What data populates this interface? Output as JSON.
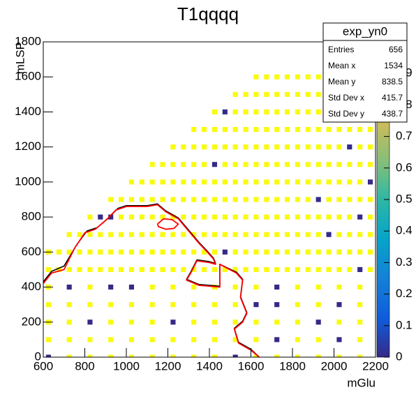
{
  "chart_data": {
    "type": "heatmap",
    "title": "T1qqqq",
    "x_label": "mGlu",
    "y_label": "mLSP",
    "xlim": [
      600,
      2200
    ],
    "ylim": [
      0,
      1800
    ],
    "xticks": [
      600,
      800,
      1000,
      1200,
      1400,
      1600,
      1800,
      2000,
      2200
    ],
    "yticks": [
      0,
      200,
      400,
      600,
      800,
      1000,
      1200,
      1400,
      1600,
      1800
    ],
    "zlim": [
      0,
      1
    ],
    "zticks": [
      0,
      0.1,
      0.2,
      0.3,
      0.4,
      0.5,
      0.6,
      0.7,
      0.8,
      0.9
    ],
    "palette": [
      "#352a87",
      "#0f5cdd",
      "#1481d6",
      "#06a4ca",
      "#2eb7a4",
      "#87bf77",
      "#d1bb59",
      "#fec832",
      "#f9fb0e"
    ],
    "x": [
      625,
      675,
      725,
      775,
      825,
      875,
      925,
      975,
      1025,
      1075,
      1125,
      1175,
      1225,
      1275,
      1325,
      1375,
      1425,
      1475,
      1525,
      1575,
      1625,
      1675,
      1725,
      1775,
      1825,
      1875,
      1925,
      1975,
      2025,
      2075,
      2125,
      2175
    ],
    "y": [
      0,
      100,
      200,
      300,
      400,
      500,
      600,
      700,
      800,
      900,
      1000,
      1100,
      1200,
      1300,
      1400,
      1500,
      1600
    ],
    "z": [
      [
        0,
        null,
        1,
        null,
        1,
        null,
        1,
        null,
        1,
        null,
        1,
        null,
        1,
        null,
        1,
        null,
        1,
        null,
        0,
        null,
        1,
        null,
        1,
        null,
        1,
        null,
        1,
        null,
        1,
        null,
        1,
        null
      ],
      [
        1,
        null,
        1,
        null,
        1,
        null,
        1,
        null,
        1,
        null,
        1,
        null,
        1,
        null,
        1,
        null,
        1,
        null,
        1,
        null,
        1,
        null,
        0,
        null,
        1,
        null,
        1,
        null,
        0,
        null,
        1,
        null
      ],
      [
        1,
        null,
        1,
        null,
        0,
        null,
        1,
        null,
        1,
        null,
        1,
        null,
        0,
        null,
        1,
        null,
        1,
        null,
        1,
        null,
        1,
        null,
        1,
        null,
        1,
        null,
        0,
        null,
        1,
        null,
        1,
        null
      ],
      [
        1,
        null,
        1,
        null,
        1,
        null,
        1,
        null,
        1,
        null,
        1,
        null,
        1,
        null,
        1,
        null,
        1,
        null,
        1,
        null,
        0,
        null,
        0,
        null,
        1,
        null,
        1,
        null,
        0,
        null,
        1,
        null
      ],
      [
        1,
        null,
        0,
        null,
        1,
        null,
        0,
        null,
        0,
        null,
        1,
        null,
        1,
        null,
        1,
        null,
        1,
        null,
        1,
        null,
        1,
        null,
        0,
        null,
        1,
        null,
        1,
        null,
        1,
        null,
        1,
        null
      ],
      [
        1,
        1,
        1,
        1,
        1,
        1,
        1,
        1,
        1,
        1,
        1,
        1,
        1,
        1,
        1,
        1,
        1,
        1,
        1,
        1,
        1,
        1,
        1,
        1,
        1,
        1,
        1,
        1,
        1,
        1,
        0,
        1
      ],
      [
        1,
        1,
        1,
        1,
        1,
        1,
        1,
        1,
        1,
        1,
        1,
        1,
        1,
        1,
        1,
        1,
        1,
        0,
        1,
        1,
        1,
        1,
        1,
        1,
        1,
        1,
        1,
        1,
        1,
        1,
        1,
        1
      ],
      [
        null,
        null,
        1,
        1,
        1,
        1,
        1,
        1,
        1,
        1,
        1,
        1,
        1,
        1,
        1,
        1,
        1,
        1,
        1,
        1,
        1,
        1,
        1,
        1,
        1,
        1,
        1,
        0,
        1,
        1,
        1,
        1
      ],
      [
        null,
        null,
        null,
        null,
        1,
        0,
        0,
        1,
        1,
        1,
        1,
        1,
        1,
        1,
        1,
        1,
        1,
        1,
        1,
        1,
        1,
        1,
        1,
        1,
        1,
        1,
        1,
        1,
        1,
        1,
        0,
        1
      ],
      [
        null,
        null,
        null,
        null,
        null,
        null,
        1,
        1,
        1,
        1,
        1,
        1,
        1,
        1,
        1,
        1,
        1,
        1,
        1,
        1,
        1,
        1,
        1,
        1,
        1,
        1,
        0,
        1,
        1,
        1,
        1,
        1
      ],
      [
        null,
        null,
        null,
        null,
        null,
        null,
        null,
        null,
        1,
        1,
        1,
        1,
        1,
        1,
        1,
        1,
        1,
        1,
        1,
        1,
        1,
        1,
        1,
        1,
        1,
        1,
        1,
        1,
        1,
        1,
        1,
        0
      ],
      [
        null,
        null,
        null,
        null,
        null,
        null,
        null,
        null,
        null,
        null,
        1,
        1,
        1,
        1,
        1,
        1,
        0,
        1,
        1,
        1,
        1,
        1,
        1,
        1,
        1,
        1,
        1,
        1,
        1,
        1,
        1,
        1
      ],
      [
        null,
        null,
        null,
        null,
        null,
        null,
        null,
        null,
        null,
        null,
        null,
        null,
        1,
        1,
        1,
        1,
        1,
        1,
        1,
        1,
        1,
        1,
        1,
        1,
        1,
        1,
        1,
        1,
        1,
        0,
        1,
        1
      ],
      [
        null,
        null,
        null,
        null,
        null,
        null,
        null,
        null,
        null,
        null,
        null,
        null,
        null,
        null,
        1,
        1,
        1,
        1,
        1,
        1,
        1,
        1,
        1,
        1,
        1,
        1,
        1,
        1,
        1,
        1,
        1,
        1
      ],
      [
        null,
        null,
        null,
        null,
        null,
        null,
        null,
        null,
        null,
        null,
        null,
        null,
        null,
        null,
        null,
        null,
        1,
        0,
        1,
        1,
        1,
        1,
        1,
        1,
        1,
        1,
        1,
        1,
        1,
        1,
        1,
        1
      ],
      [
        null,
        null,
        null,
        null,
        null,
        null,
        null,
        null,
        null,
        null,
        null,
        null,
        null,
        null,
        null,
        null,
        null,
        null,
        1,
        1,
        1,
        1,
        1,
        1,
        1,
        1,
        1,
        1,
        1,
        1,
        1,
        1
      ],
      [
        null,
        null,
        null,
        null,
        null,
        null,
        null,
        null,
        null,
        null,
        null,
        null,
        null,
        null,
        null,
        null,
        null,
        null,
        null,
        null,
        1,
        1,
        1,
        1,
        1,
        1,
        1,
        1,
        1,
        1,
        1,
        1
      ]
    ],
    "series": [
      {
        "color": "#000000",
        "width": 1.6,
        "x": [
          600,
          640,
          700,
          760,
          810,
          860,
          910,
          960,
          1000,
          1100,
          1150,
          1190,
          1250,
          1300,
          1350,
          1390,
          1420,
          1430,
          1400,
          1340,
          1310,
          1290,
          1350,
          1450,
          1450,
          1530,
          1560,
          1550,
          1580,
          1560,
          1520,
          1540,
          1600,
          1640
        ],
        "y": [
          430,
          490,
          520,
          640,
          720,
          740,
          790,
          850,
          865,
          865,
          875,
          835,
          795,
          725,
          655,
          605,
          565,
          535,
          545,
          555,
          485,
          445,
          415,
          405,
          530,
          485,
          445,
          345,
          255,
          205,
          165,
          85,
          45,
          0
        ]
      },
      {
        "color": "#ff0000",
        "width": 1.8,
        "x": [
          600,
          640,
          700,
          750,
          800,
          850,
          900,
          950,
          1000,
          1100,
          1150,
          1190,
          1250,
          1300,
          1350,
          1390,
          1420,
          1430,
          1400,
          1340,
          1310,
          1290,
          1350,
          1450,
          1450,
          1530,
          1560,
          1550,
          1580,
          1560,
          1520,
          1540,
          1600,
          1640
        ],
        "y": [
          420,
          480,
          500,
          620,
          710,
          730,
          780,
          840,
          860,
          860,
          870,
          830,
          790,
          720,
          650,
          600,
          560,
          530,
          540,
          550,
          480,
          440,
          410,
          400,
          530,
          480,
          440,
          340,
          250,
          200,
          160,
          80,
          40,
          0
        ]
      },
      {
        "color": "#ff0000",
        "width": 1.8,
        "x": [
          1150,
          1180,
          1220,
          1250,
          1230,
          1190,
          1155,
          1150
        ],
        "y": [
          760,
          790,
          785,
          760,
          735,
          730,
          745,
          760
        ]
      }
    ],
    "stats": {
      "title": "exp_yn0",
      "rows": [
        {
          "label": "Entries",
          "value": 656
        },
        {
          "label": "Mean x",
          "value": 1534
        },
        {
          "label": "Mean y",
          "value": 838.5
        },
        {
          "label": "Std Dev x",
          "value": 415.7
        },
        {
          "label": "Std Dev y",
          "value": 438.7
        }
      ]
    }
  }
}
